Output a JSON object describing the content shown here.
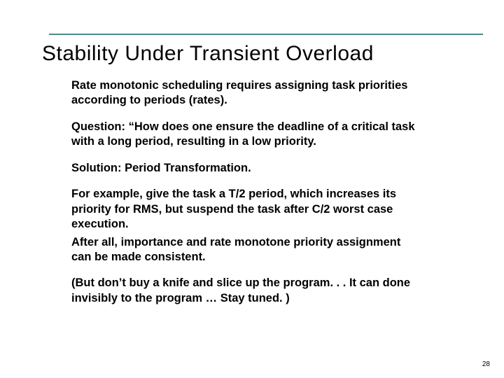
{
  "title": "Stability Under Transient Overload",
  "paragraphs": {
    "p1": "Rate monotonic scheduling requires assigning task priorities according to periods (rates).",
    "p2": "Question: “How does one ensure the deadline of a critical task with a long period, resulting in a low priority.",
    "p3": "Solution: Period Transformation.",
    "p4": "For example, give the task  a T/2 period, which increases its priority for RMS, but suspend the task after C/2 worst case execution.",
    "p5": "After all, importance and rate monotone priority assignment can be made consistent.",
    "p6": "(But don’t buy a knife and slice up the program. . . It can done invisibly to the program … Stay tuned. )"
  },
  "page_number": "28",
  "colors": {
    "rule": "#4a8a8a",
    "background": "#ffffff",
    "text": "#000000"
  },
  "fonts": {
    "title_size_pt": 30,
    "body_size_pt": 16.5,
    "body_weight": "bold"
  }
}
